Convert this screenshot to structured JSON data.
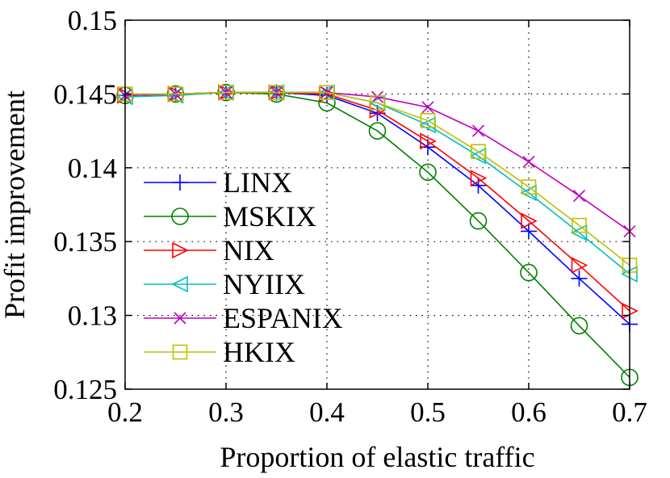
{
  "chart_data": {
    "type": "line",
    "title": "",
    "xlabel": "Proportion of elastic traffic",
    "ylabel": "Profit improvement",
    "xlim": [
      0.2,
      0.7
    ],
    "ylim": [
      0.125,
      0.15
    ],
    "x": [
      0.2,
      0.25,
      0.3,
      0.35,
      0.4,
      0.45,
      0.5,
      0.55,
      0.6,
      0.65,
      0.7
    ],
    "x_ticks": [
      0.2,
      0.3,
      0.4,
      0.5,
      0.6,
      0.7
    ],
    "x_tick_labels": [
      "0.2",
      "0.3",
      "0.4",
      "0.5",
      "0.6",
      "0.7"
    ],
    "y_ticks": [
      0.125,
      0.13,
      0.135,
      0.14,
      0.145,
      0.15
    ],
    "y_tick_labels": [
      "0.125",
      "0.13",
      "0.135",
      "0.14",
      "0.145",
      "0.15"
    ],
    "grid": true,
    "legend_position": "left",
    "series": [
      {
        "name": "LINX",
        "color": "#0000ff",
        "marker": "plus",
        "values": [
          0.1449,
          0.145,
          0.1451,
          0.1451,
          0.1449,
          0.1437,
          0.1414,
          0.1388,
          0.1357,
          0.1325,
          0.1294
        ]
      },
      {
        "name": "MSKIX",
        "color": "#008000",
        "marker": "circle",
        "values": [
          0.1449,
          0.145,
          0.1451,
          0.145,
          0.1444,
          0.1425,
          0.1397,
          0.1364,
          0.1329,
          0.1293,
          0.1258
        ]
      },
      {
        "name": "NIX",
        "color": "#ff0000",
        "marker": "triangle-right",
        "values": [
          0.1449,
          0.145,
          0.1451,
          0.1451,
          0.145,
          0.1439,
          0.1418,
          0.1393,
          0.1364,
          0.1334,
          0.1303
        ]
      },
      {
        "name": "NYIIX",
        "color": "#00bfbf",
        "marker": "triangle-left",
        "values": [
          0.1448,
          0.1449,
          0.1451,
          0.1451,
          0.1451,
          0.1444,
          0.1429,
          0.1408,
          0.1383,
          0.1356,
          0.1328
        ]
      },
      {
        "name": "ESPANIX",
        "color": "#bf00bf",
        "marker": "x",
        "values": [
          0.1449,
          0.145,
          0.1451,
          0.1451,
          0.1451,
          0.1448,
          0.1441,
          0.1425,
          0.1404,
          0.1381,
          0.1357
        ]
      },
      {
        "name": "HKIX",
        "color": "#bfbf00",
        "marker": "square",
        "values": [
          0.145,
          0.145,
          0.1451,
          0.1451,
          0.1451,
          0.1444,
          0.1432,
          0.1411,
          0.1387,
          0.1361,
          0.1334
        ]
      }
    ]
  }
}
